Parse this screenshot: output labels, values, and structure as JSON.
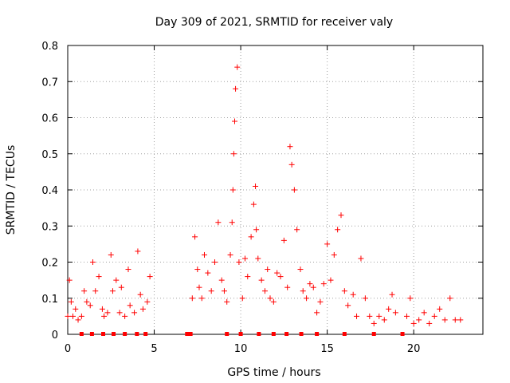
{
  "chart_data": {
    "type": "scatter",
    "title": "Day 309 of 2021, SRMTID for receiver valy",
    "xlabel": "GPS time / hours",
    "ylabel": "SRMTID / TECUs",
    "xlim": [
      0,
      24
    ],
    "ylim": [
      0,
      0.8
    ],
    "x_ticks": [
      0,
      5,
      10,
      15,
      20
    ],
    "x_tick_labels": [
      "0",
      "5",
      "10",
      "15",
      "20"
    ],
    "y_ticks": [
      0,
      0.1,
      0.2,
      0.3,
      0.4,
      0.5,
      0.6,
      0.7,
      0.8
    ],
    "y_tick_labels": [
      "0",
      "0.1",
      "0.2",
      "0.3",
      "0.4",
      "0.5",
      "0.6",
      "0.7",
      "0.8"
    ],
    "grid": true,
    "marker": "+",
    "color": "#ff0000",
    "series": [
      {
        "name": "SRMTID",
        "x": [
          0.0,
          0.1,
          0.2,
          0.3,
          0.45,
          0.6,
          0.8,
          0.95,
          1.1,
          1.3,
          1.45,
          1.6,
          1.8,
          2.0,
          2.1,
          2.3,
          2.5,
          2.6,
          2.8,
          3.0,
          3.1,
          3.3,
          3.5,
          3.6,
          3.85,
          4.05,
          4.2,
          4.35,
          4.6,
          4.75,
          7.2,
          7.35,
          7.5,
          7.6,
          7.75,
          7.9,
          8.1,
          8.3,
          8.5,
          8.7,
          8.9,
          9.05,
          9.2,
          9.4,
          9.5,
          9.55,
          9.6,
          9.65,
          9.7,
          9.8,
          9.9,
          10.1,
          10.25,
          10.4,
          10.6,
          10.75,
          10.85,
          10.9,
          11.0,
          11.2,
          11.4,
          11.55,
          11.7,
          11.9,
          12.1,
          12.3,
          12.5,
          12.7,
          12.85,
          12.95,
          13.1,
          13.25,
          13.45,
          13.6,
          13.8,
          14.0,
          14.2,
          14.4,
          14.6,
          14.8,
          15.0,
          15.2,
          15.4,
          15.6,
          15.8,
          16.0,
          16.2,
          16.5,
          16.7,
          16.95,
          17.2,
          17.45,
          17.7,
          18.0,
          18.3,
          18.55,
          18.75,
          18.95,
          19.6,
          19.8,
          20.0,
          20.3,
          20.6,
          20.9,
          21.2,
          21.5,
          21.8,
          22.1,
          22.4,
          22.7
        ],
        "y": [
          0.05,
          0.15,
          0.09,
          0.05,
          0.07,
          0.04,
          0.05,
          0.12,
          0.09,
          0.08,
          0.2,
          0.12,
          0.16,
          0.07,
          0.05,
          0.06,
          0.22,
          0.12,
          0.15,
          0.06,
          0.13,
          0.05,
          0.18,
          0.08,
          0.06,
          0.23,
          0.11,
          0.07,
          0.09,
          0.16,
          0.1,
          0.27,
          0.18,
          0.13,
          0.1,
          0.22,
          0.17,
          0.12,
          0.2,
          0.31,
          0.15,
          0.12,
          0.09,
          0.22,
          0.31,
          0.4,
          0.5,
          0.59,
          0.68,
          0.74,
          0.2,
          0.1,
          0.21,
          0.16,
          0.27,
          0.36,
          0.41,
          0.29,
          0.21,
          0.15,
          0.12,
          0.18,
          0.1,
          0.09,
          0.17,
          0.16,
          0.26,
          0.13,
          0.52,
          0.47,
          0.4,
          0.29,
          0.18,
          0.12,
          0.1,
          0.14,
          0.13,
          0.06,
          0.09,
          0.14,
          0.25,
          0.15,
          0.22,
          0.29,
          0.33,
          0.12,
          0.08,
          0.11,
          0.05,
          0.21,
          0.1,
          0.05,
          0.03,
          0.05,
          0.04,
          0.07,
          0.11,
          0.06,
          0.05,
          0.1,
          0.03,
          0.04,
          0.06,
          0.03,
          0.05,
          0.07,
          0.04,
          0.1,
          0.04,
          0.04
        ]
      }
    ],
    "zero_markers_x": [
      0.8,
      1.4,
      2.05,
      2.65,
      3.3,
      4.0,
      4.5,
      6.9,
      7.1,
      9.2,
      10.0,
      11.05,
      11.9,
      12.65,
      13.5,
      14.4,
      16.0,
      17.7,
      19.35
    ]
  }
}
